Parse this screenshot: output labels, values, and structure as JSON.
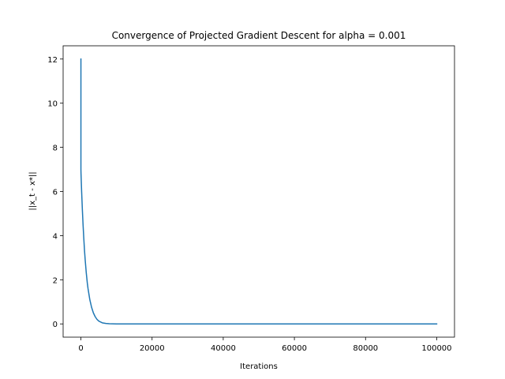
{
  "chart_data": {
    "type": "line",
    "title": "Convergence of Projected Gradient Descent for alpha = 0.001",
    "xlabel": "Iterations",
    "ylabel": "||x_t - x*||",
    "xlim": [
      -5000,
      105000
    ],
    "ylim": [
      -0.6,
      12.6
    ],
    "xticks": [
      0,
      20000,
      40000,
      60000,
      80000,
      100000
    ],
    "xtick_labels": [
      "0",
      "20000",
      "40000",
      "60000",
      "80000",
      "100000"
    ],
    "yticks": [
      0,
      2,
      4,
      6,
      8,
      10,
      12
    ],
    "ytick_labels": [
      "0",
      "2",
      "4",
      "6",
      "8",
      "10",
      "12"
    ],
    "grid": false,
    "series": [
      {
        "color": "#1f77b4",
        "x": [
          0,
          1,
          30,
          100,
          200,
          400,
          600,
          800,
          1000,
          1200,
          1500,
          1800,
          2000,
          2500,
          3000,
          3500,
          4000,
          4500,
          5000,
          6000,
          7000,
          8000,
          10000,
          15000,
          20000,
          40000,
          60000,
          80000,
          100000
        ],
        "y": [
          12.0,
          7.0,
          6.79,
          6.46,
          6.0,
          5.2,
          4.5,
          3.9,
          3.35,
          2.9,
          2.32,
          1.85,
          1.6,
          1.1,
          0.75,
          0.5,
          0.33,
          0.21,
          0.13,
          0.05,
          0.02,
          0.01,
          0.0,
          0.0,
          0.0,
          0.0,
          0.0,
          0.0,
          0.0
        ]
      }
    ]
  }
}
